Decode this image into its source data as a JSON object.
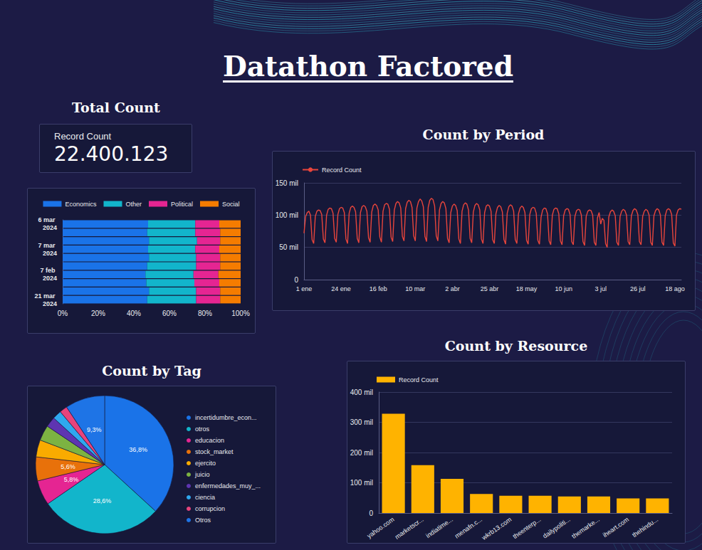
{
  "title": "Datathon Factored",
  "total_count": {
    "title": "Total Count",
    "label": "Record Count",
    "value": "22.400.123"
  },
  "chart_data": [
    {
      "type": "bar",
      "orientation": "horizontal",
      "stacked": true,
      "grid": false,
      "legend": "top",
      "categories": [
        "6 mar 2024",
        null,
        null,
        "7 mar 2024",
        null,
        null,
        "7 feb 2024",
        null,
        null,
        "21 mar 2024"
      ],
      "series": [
        {
          "name": "Economics",
          "color": "#1a73e8",
          "values": [
            48.0,
            47.5,
            48.5,
            48.0,
            48.5,
            47.5,
            46.5,
            47.0,
            48.5,
            47.5
          ]
        },
        {
          "name": "Other",
          "color": "#12b5cb",
          "values": [
            26.5,
            27.0,
            27.0,
            26.5,
            26.5,
            27.5,
            27.0,
            27.0,
            26.5,
            27.5
          ]
        },
        {
          "name": "Political",
          "color": "#e52592",
          "values": [
            13.5,
            14.0,
            13.0,
            13.5,
            13.5,
            13.5,
            14.0,
            14.0,
            13.5,
            13.5
          ]
        },
        {
          "name": "Social",
          "color": "#f57c00",
          "values": [
            12.0,
            11.5,
            11.5,
            12.0,
            11.5,
            11.5,
            12.5,
            12.0,
            11.5,
            11.5
          ]
        }
      ],
      "xlim": [
        0,
        100
      ],
      "xticks": [
        {
          "value": 0,
          "label": "0%"
        },
        {
          "value": 20,
          "label": "20%"
        },
        {
          "value": 40,
          "label": "40%"
        },
        {
          "value": 60,
          "label": "60%"
        },
        {
          "value": 80,
          "label": "80%"
        },
        {
          "value": 100,
          "label": "100%"
        }
      ]
    },
    {
      "type": "line",
      "title": "Count by Period",
      "grid": true,
      "legend": "top-left",
      "categories": [
        "1 ene",
        null,
        null,
        null,
        null,
        null,
        null,
        null,
        null,
        null,
        null,
        null,
        null,
        null,
        null,
        null,
        null,
        null,
        null,
        null,
        null,
        null,
        null,
        "24 ene",
        null,
        null,
        null,
        null,
        null,
        null,
        null,
        null,
        null,
        null,
        null,
        null,
        null,
        null,
        null,
        null,
        null,
        null,
        null,
        null,
        null,
        null,
        "16 feb",
        null,
        null,
        null,
        null,
        null,
        null,
        null,
        null,
        null,
        null,
        null,
        null,
        null,
        null,
        null,
        null,
        null,
        null,
        null,
        null,
        null,
        null,
        "10 mar",
        null,
        null,
        null,
        null,
        null,
        null,
        null,
        null,
        null,
        null,
        null,
        null,
        null,
        null,
        null,
        null,
        null,
        null,
        null,
        null,
        null,
        null,
        "2 abr",
        null,
        null,
        null,
        null,
        null,
        null,
        null,
        null,
        null,
        null,
        null,
        null,
        null,
        null,
        null,
        null,
        null,
        null,
        null,
        null,
        null,
        null,
        "25 abr",
        null,
        null,
        null,
        null,
        null,
        null,
        null,
        null,
        null,
        null,
        null,
        null,
        null,
        null,
        null,
        null,
        null,
        null,
        null,
        null,
        null,
        null,
        "18 may",
        null,
        null,
        null,
        null,
        null,
        null,
        null,
        null,
        null,
        null,
        null,
        null,
        null,
        null,
        null,
        null,
        null,
        null,
        null,
        null,
        null,
        null,
        "10 jun",
        null,
        null,
        null,
        null,
        null,
        null,
        null,
        null,
        null,
        null,
        null,
        null,
        null,
        null,
        null,
        null,
        null,
        null,
        null,
        null,
        null,
        null,
        "3 jul",
        null,
        null,
        null,
        null,
        null,
        null,
        null,
        null,
        null,
        null,
        null,
        null,
        null,
        null,
        null,
        null,
        null,
        null,
        null,
        null,
        null,
        null,
        "26 jul",
        null,
        null,
        null,
        null,
        null,
        null,
        null,
        null,
        null,
        null,
        null,
        null,
        null,
        null,
        null,
        null,
        null,
        null,
        null,
        null,
        null,
        null,
        "18 ago",
        null,
        null,
        null,
        null
      ],
      "series": [
        {
          "name": "Record Count",
          "color": "#e8453c",
          "values": [
            72000,
            98000,
            104000,
            106000,
            100000,
            62000,
            56000,
            98000,
            106000,
            108000,
            107000,
            101000,
            63000,
            57000,
            100000,
            109000,
            111000,
            110000,
            103000,
            64000,
            58000,
            101000,
            110000,
            112000,
            111000,
            104000,
            63000,
            56000,
            103000,
            112000,
            114000,
            112000,
            105000,
            64000,
            57000,
            104000,
            113000,
            115000,
            113000,
            106000,
            65000,
            58000,
            105000,
            115000,
            117000,
            115000,
            108000,
            66000,
            58000,
            106000,
            116000,
            118000,
            117000,
            109000,
            66000,
            59000,
            108000,
            118000,
            121000,
            119000,
            111000,
            67000,
            60000,
            110000,
            120000,
            123000,
            121000,
            112000,
            68000,
            60000,
            111000,
            121000,
            125000,
            122000,
            113000,
            67000,
            59000,
            112000,
            123000,
            126000,
            124000,
            114000,
            68000,
            60000,
            108000,
            118000,
            121000,
            119000,
            110000,
            64000,
            57000,
            104000,
            114000,
            117000,
            115000,
            107000,
            63000,
            56000,
            106000,
            116000,
            119000,
            117000,
            108000,
            64000,
            57000,
            105000,
            115000,
            118000,
            116000,
            108000,
            63000,
            56000,
            104000,
            114000,
            116000,
            114000,
            106000,
            62000,
            56000,
            102000,
            112000,
            115000,
            113000,
            105000,
            62000,
            55000,
            103000,
            113000,
            116000,
            114000,
            106000,
            62000,
            56000,
            102000,
            111000,
            114000,
            112000,
            104000,
            61000,
            55000,
            101000,
            110000,
            112000,
            111000,
            103000,
            61000,
            55000,
            97000,
            108000,
            111000,
            110000,
            102000,
            60000,
            54000,
            100000,
            109000,
            111000,
            110000,
            102000,
            60000,
            54000,
            99000,
            108000,
            110000,
            109000,
            101000,
            59000,
            54000,
            98000,
            107000,
            109000,
            108000,
            100000,
            59000,
            53000,
            98000,
            106000,
            108000,
            107000,
            100000,
            58000,
            53000,
            96000,
            104000,
            86000,
            95000,
            92000,
            56000,
            50000,
            97000,
            105000,
            108000,
            106000,
            99000,
            58000,
            53000,
            98000,
            106000,
            109000,
            107000,
            100000,
            59000,
            54000,
            99000,
            107000,
            110000,
            108000,
            101000,
            59000,
            54000,
            98000,
            106000,
            109000,
            107000,
            100000,
            58000,
            53000,
            99000,
            107000,
            110000,
            108000,
            100000,
            58000,
            53000,
            99000,
            108000,
            110000,
            108000,
            101000,
            57000,
            52000,
            100000,
            108000,
            110000,
            109000
          ]
        }
      ],
      "ylim": [
        0,
        150000
      ],
      "yticks": [
        0,
        {
          "value": 50000,
          "label": "50 mil"
        },
        {
          "value": 100000,
          "label": "100 mil"
        },
        {
          "value": 150000,
          "label": "150 mil"
        }
      ]
    },
    {
      "type": "pie",
      "title": "Count by Tag",
      "legend": "right",
      "data_labels": true,
      "categories": [
        "incertidumbre_econ...",
        "otros",
        "educacion",
        "stock_market",
        "ejercito",
        "juicio",
        "enfermedades_muy_...",
        "ciencia",
        "corrupcion",
        "Otros"
      ],
      "values": [
        36.8,
        28.6,
        5.8,
        5.6,
        4.0,
        3.6,
        2.4,
        2.1,
        1.8,
        9.3
      ],
      "value_labels": [
        "36,8%",
        "28,6%",
        "5,8%",
        "5,6%",
        null,
        null,
        null,
        null,
        null,
        "9,3%"
      ],
      "colors": [
        "#1a73e8",
        "#12b5cb",
        "#e52592",
        "#e8710a",
        "#f9ab00",
        "#7cb342",
        "#5e35b1",
        "#2fa8ef",
        "#e8437c",
        "#1e74e6"
      ]
    },
    {
      "type": "bar",
      "title": "Count by Resource",
      "grid": true,
      "legend": "top-left",
      "categories": [
        "yahoo.com",
        "marketscr...",
        "indiatime...",
        "menafn.c...",
        "wkrb13.com",
        "theenterp...",
        "dailypoliti...",
        "themarke...",
        "iheart.com",
        "thehindu..."
      ],
      "series": [
        {
          "name": "Record Count",
          "color": "#ffb300",
          "values": [
            328000,
            158000,
            113000,
            63000,
            57000,
            57000,
            55000,
            55000,
            48000,
            48000
          ]
        }
      ],
      "ylim": [
        0,
        400000
      ],
      "yticks": [
        0,
        {
          "value": 100000,
          "label": "100 mil"
        },
        {
          "value": 200000,
          "label": "200 mil"
        },
        {
          "value": 300000,
          "label": "300 mil"
        },
        {
          "value": 400000,
          "label": "400 mil"
        }
      ]
    }
  ]
}
